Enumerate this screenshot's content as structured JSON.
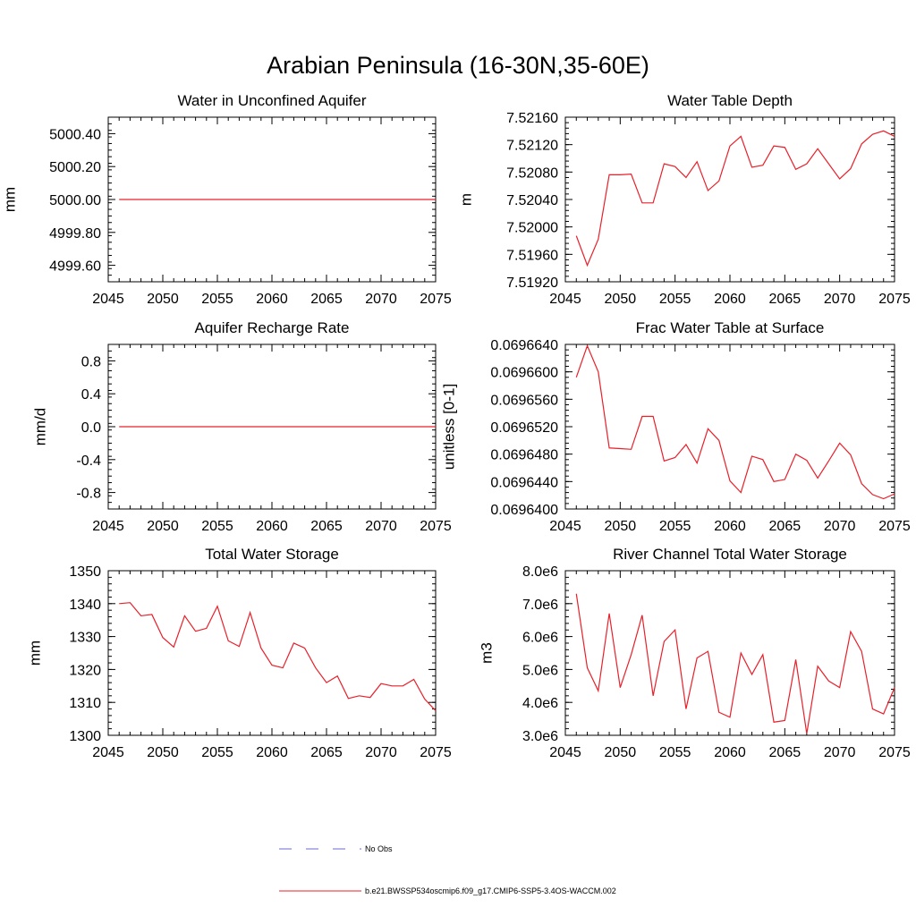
{
  "figure": {
    "title": "Arabian Peninsula (16-30N,35-60E)",
    "legend": [
      {
        "label": "No Obs",
        "color": "#6b6bd6",
        "dashed": true
      },
      {
        "label": "b.e21.BWSSP534oscmip6.f09_g17.CMIP6-SSP5-3.4OS-WACCM.002",
        "color": "#e8202a",
        "dashed": false
      }
    ]
  },
  "chart_data": [
    {
      "type": "line",
      "title": "Water in Unconfined Aquifer",
      "ylabel": "mm",
      "xlim": [
        2045,
        2075
      ],
      "ylim": [
        4999.5,
        5000.5
      ],
      "xticks": [
        2045,
        2050,
        2055,
        2060,
        2065,
        2070,
        2075
      ],
      "yticks": [
        4999.6,
        4999.8,
        5000.0,
        5000.2,
        5000.4
      ],
      "ytick_labels": [
        "4999.60",
        "4999.80",
        "5000.00",
        "5000.20",
        "5000.40"
      ],
      "x": [
        2046,
        2075
      ],
      "series": [
        {
          "values": [
            5000.0,
            5000.0
          ],
          "color": "#e8202a"
        }
      ]
    },
    {
      "type": "line",
      "title": "Water Table Depth",
      "ylabel": "m",
      "xlim": [
        2045,
        2075
      ],
      "ylim": [
        7.5192,
        7.5216
      ],
      "xticks": [
        2045,
        2050,
        2055,
        2060,
        2065,
        2070,
        2075
      ],
      "yticks": [
        7.5192,
        7.5196,
        7.52,
        7.5204,
        7.5208,
        7.5212,
        7.5216
      ],
      "ytick_labels": [
        "7.51920",
        "7.51960",
        "7.52000",
        "7.52040",
        "7.52080",
        "7.52120",
        "7.52160"
      ],
      "x": [
        2046,
        2047,
        2048,
        2049,
        2050,
        2051,
        2052,
        2053,
        2054,
        2055,
        2056,
        2057,
        2058,
        2059,
        2060,
        2061,
        2062,
        2063,
        2064,
        2065,
        2066,
        2067,
        2068,
        2069,
        2070,
        2071,
        2072,
        2073,
        2074,
        2075
      ],
      "series": [
        {
          "values": [
            7.51987,
            7.51944,
            7.51982,
            7.52076,
            7.52076,
            7.52077,
            7.52035,
            7.52035,
            7.52092,
            7.52088,
            7.52072,
            7.52095,
            7.52053,
            7.52067,
            7.52118,
            7.52132,
            7.52087,
            7.5209,
            7.52118,
            7.52116,
            7.52084,
            7.52092,
            7.52114,
            7.52092,
            7.5207,
            7.52085,
            7.52121,
            7.52135,
            7.5214,
            7.52132
          ],
          "color": "#e8202a"
        }
      ]
    },
    {
      "type": "line",
      "title": "Aquifer Recharge Rate",
      "ylabel": "mm/d",
      "xlim": [
        2045,
        2075
      ],
      "ylim": [
        -1.0,
        1.0
      ],
      "xticks": [
        2045,
        2050,
        2055,
        2060,
        2065,
        2070,
        2075
      ],
      "yticks": [
        -0.8,
        -0.4,
        0.0,
        0.4,
        0.8
      ],
      "ytick_labels": [
        "-0.8",
        "-0.4",
        "0.0",
        "0.4",
        "0.8"
      ],
      "x": [
        2046,
        2075
      ],
      "series": [
        {
          "values": [
            0.0,
            0.0
          ],
          "color": "#e8202a"
        }
      ]
    },
    {
      "type": "line",
      "title": "Frac Water Table at Surface",
      "ylabel": "unitless [0-1]",
      "xlim": [
        2045,
        2075
      ],
      "ylim": [
        0.06964,
        0.069664
      ],
      "xticks": [
        2045,
        2050,
        2055,
        2060,
        2065,
        2070,
        2075
      ],
      "yticks": [
        0.06964,
        0.069644,
        0.069648,
        0.069652,
        0.069656,
        0.06966,
        0.069664
      ],
      "ytick_labels": [
        "0.0696400",
        "0.0696440",
        "0.0696480",
        "0.0696520",
        "0.0696560",
        "0.0696600",
        "0.0696640"
      ],
      "x": [
        2046,
        2047,
        2048,
        2049,
        2050,
        2051,
        2052,
        2053,
        2054,
        2055,
        2056,
        2057,
        2058,
        2059,
        2060,
        2061,
        2062,
        2063,
        2064,
        2065,
        2066,
        2067,
        2068,
        2069,
        2070,
        2071,
        2072,
        2073,
        2074,
        2075
      ],
      "series": [
        {
          "values": [
            0.0696592,
            0.0696638,
            0.06966,
            0.0696489,
            0.0696488,
            0.0696487,
            0.0696535,
            0.0696535,
            0.069647,
            0.0696475,
            0.0696494,
            0.0696467,
            0.0696517,
            0.06965,
            0.0696441,
            0.0696424,
            0.0696477,
            0.0696472,
            0.069644,
            0.0696443,
            0.069648,
            0.0696471,
            0.0696445,
            0.069647,
            0.0696496,
            0.0696479,
            0.0696437,
            0.0696421,
            0.0696415,
            0.0696422
          ],
          "color": "#e8202a"
        }
      ]
    },
    {
      "type": "line",
      "title": "Total Water Storage",
      "ylabel": "mm",
      "xlim": [
        2045,
        2075
      ],
      "ylim": [
        1300,
        1350
      ],
      "xticks": [
        2045,
        2050,
        2055,
        2060,
        2065,
        2070,
        2075
      ],
      "yticks": [
        1300,
        1310,
        1320,
        1330,
        1340,
        1350
      ],
      "ytick_labels": [
        "1300",
        "1310",
        "1320",
        "1330",
        "1340",
        "1350"
      ],
      "x": [
        2046,
        2047,
        2048,
        2049,
        2050,
        2051,
        2052,
        2053,
        2054,
        2055,
        2056,
        2057,
        2058,
        2059,
        2060,
        2061,
        2062,
        2063,
        2064,
        2065,
        2066,
        2067,
        2068,
        2069,
        2070,
        2071,
        2072,
        2073,
        2074,
        2075
      ],
      "series": [
        {
          "values": [
            1340.0,
            1340.3,
            1336.3,
            1336.7,
            1329.7,
            1326.8,
            1336.3,
            1331.6,
            1332.5,
            1339.2,
            1328.7,
            1327.0,
            1337.3,
            1326.5,
            1321.3,
            1320.5,
            1328.0,
            1326.5,
            1320.5,
            1316.0,
            1318.0,
            1311.2,
            1312.0,
            1311.5,
            1315.7,
            1315.0,
            1315.0,
            1317.0,
            1311.0,
            1307.5
          ],
          "color": "#e8202a"
        }
      ]
    },
    {
      "type": "line",
      "title": "River Channel Total Water Storage",
      "ylabel": "m3",
      "xlim": [
        2045,
        2075
      ],
      "ylim": [
        3000000,
        8000000
      ],
      "xticks": [
        2045,
        2050,
        2055,
        2060,
        2065,
        2070,
        2075
      ],
      "yticks": [
        3000000,
        4000000,
        5000000,
        6000000,
        7000000,
        8000000
      ],
      "ytick_labels": [
        "3.0e6",
        "4.0e6",
        "5.0e6",
        "6.0e6",
        "7.0e6",
        "8.0e6"
      ],
      "x": [
        2046,
        2047,
        2048,
        2049,
        2050,
        2051,
        2052,
        2053,
        2054,
        2055,
        2056,
        2057,
        2058,
        2059,
        2060,
        2061,
        2062,
        2063,
        2064,
        2065,
        2066,
        2067,
        2068,
        2069,
        2070,
        2071,
        2072,
        2073,
        2074,
        2075
      ],
      "series": [
        {
          "values": [
            7300000,
            5050000,
            4350000,
            6700000,
            4450000,
            5450000,
            6650000,
            4200000,
            5850000,
            6200000,
            3800000,
            5350000,
            5550000,
            3700000,
            3550000,
            5500000,
            4850000,
            5450000,
            3400000,
            3450000,
            5300000,
            3050000,
            5100000,
            4650000,
            4450000,
            6150000,
            5550000,
            3800000,
            3650000,
            4450000
          ],
          "color": "#e8202a"
        }
      ]
    }
  ]
}
